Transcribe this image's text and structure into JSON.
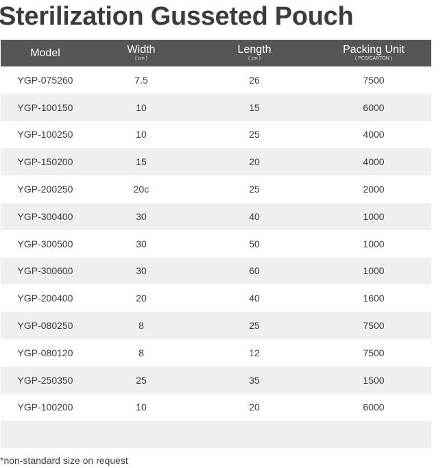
{
  "title": "Sterilization Gusseted Pouch",
  "columns": {
    "model": "Model",
    "width": "Width",
    "width_unit": "( cm )",
    "length": "Length",
    "length_unit": "( cm )",
    "packing": "Packing Unit",
    "packing_unit": "( PCS/CARTON )"
  },
  "rows": [
    {
      "model": "YGP-075260",
      "width": "7.5",
      "length": "26",
      "packing": "7500"
    },
    {
      "model": "YGP-100150",
      "width": "10",
      "length": "15",
      "packing": "6000"
    },
    {
      "model": "YGP-100250",
      "width": "10",
      "length": "25",
      "packing": "4000"
    },
    {
      "model": "YGP-150200",
      "width": "15",
      "length": "20",
      "packing": "4000"
    },
    {
      "model": "YGP-200250",
      "width": "20c",
      "length": "25",
      "packing": "2000"
    },
    {
      "model": "YGP-300400",
      "width": "30",
      "length": "40",
      "packing": "1000"
    },
    {
      "model": "YGP-300500",
      "width": "30",
      "length": "50",
      "packing": "1000"
    },
    {
      "model": "YGP-300600",
      "width": "30",
      "length": "60",
      "packing": "1000"
    },
    {
      "model": "YGP-200400",
      "width": "20",
      "length": "40",
      "packing": "1600"
    },
    {
      "model": "YGP-080250",
      "width": "8",
      "length": "25",
      "packing": "7500"
    },
    {
      "model": "YGP-080120",
      "width": "8",
      "length": "12",
      "packing": "7500"
    },
    {
      "model": "YGP-250350",
      "width": "25",
      "length": "35",
      "packing": "1500"
    },
    {
      "model": "YGP-100200",
      "width": "10",
      "length": "20",
      "packing": "6000"
    },
    {
      "model": "",
      "width": "",
      "length": "",
      "packing": ""
    }
  ],
  "note": "*non-standard size on request"
}
